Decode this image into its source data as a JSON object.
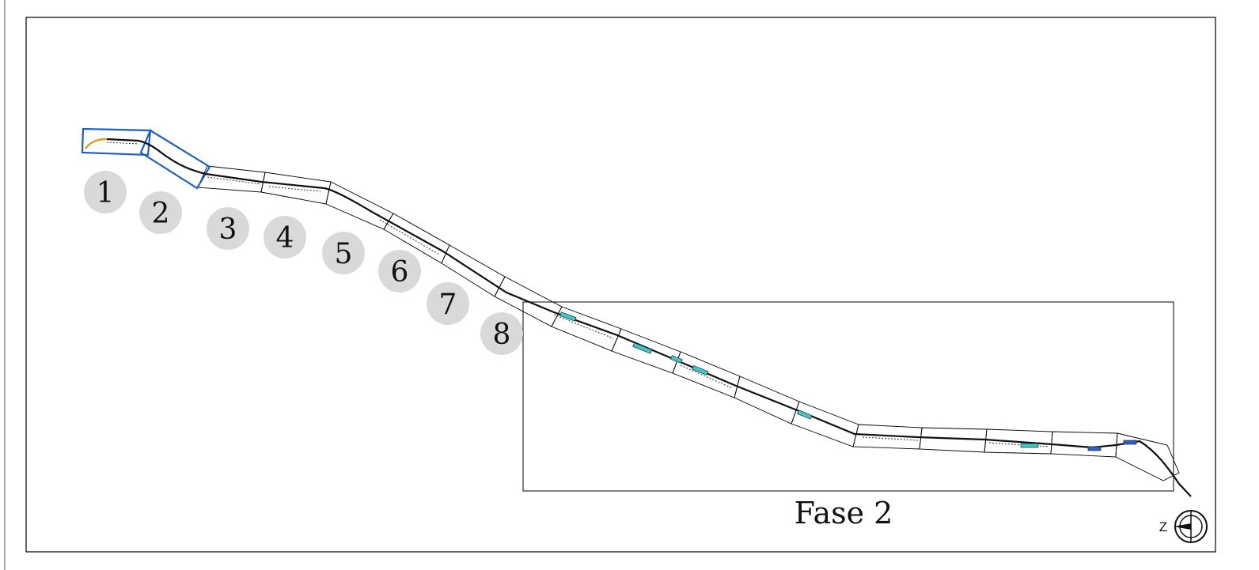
{
  "map": {
    "sheet_markers": [
      {
        "id": "1",
        "label": "1"
      },
      {
        "id": "2",
        "label": "2"
      },
      {
        "id": "3",
        "label": "3"
      },
      {
        "id": "4",
        "label": "4"
      },
      {
        "id": "5",
        "label": "5"
      },
      {
        "id": "6",
        "label": "6"
      },
      {
        "id": "7",
        "label": "7"
      },
      {
        "id": "8",
        "label": "8"
      }
    ],
    "phase_label": "Fase 2",
    "north_arrow_label": "Z",
    "colors": {
      "border": "#000000",
      "sheet_frame": "#000000",
      "highlight_frame": "#1f5fbf",
      "marker_circle": "#d9d9d9",
      "route": "#111111",
      "route_start": "#e0a020",
      "water": "#40c8c8"
    }
  }
}
